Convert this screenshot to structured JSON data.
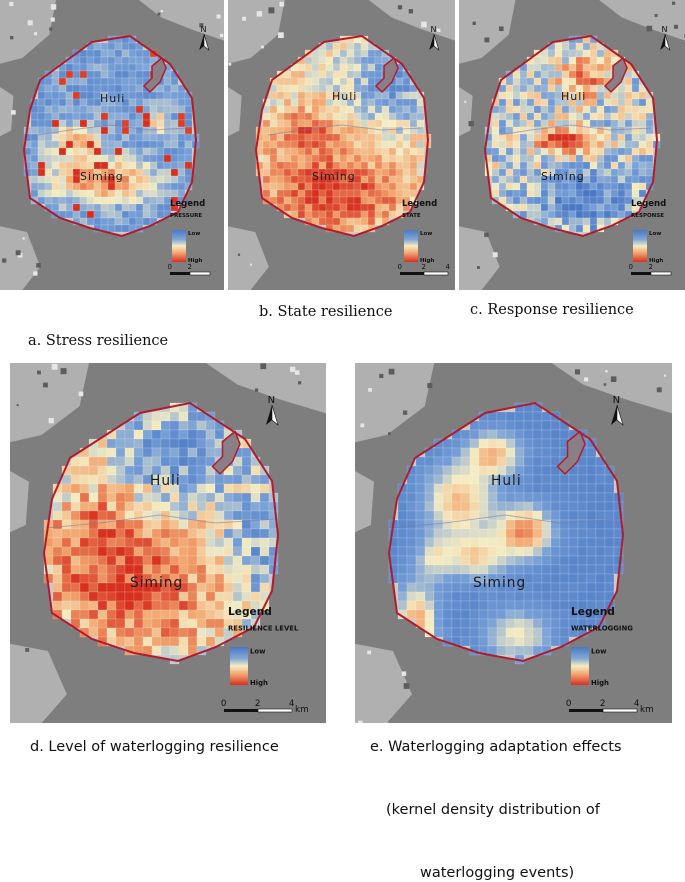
{
  "panels": [
    {
      "id": "a",
      "legend_title": "Legend",
      "variable": "PRESSURE",
      "legend_low": "Low",
      "legend_high": "High",
      "place_north": "Huli",
      "place_south": "Siming",
      "north_label": "N",
      "scale_ticks": [
        "0",
        "2",
        ""
      ],
      "scale_unit": "",
      "pattern": "stress"
    },
    {
      "id": "b",
      "legend_title": "Legend",
      "variable": "STATE",
      "legend_low": "Low",
      "legend_high": "High",
      "place_north": "Huli",
      "place_south": "Siming",
      "north_label": "N",
      "scale_ticks": [
        "0",
        "2",
        "4"
      ],
      "scale_unit": "",
      "pattern": "state"
    },
    {
      "id": "c",
      "legend_title": "Legend",
      "variable": "RESPONSE",
      "legend_low": "Low",
      "legend_high": "High",
      "place_north": "Huli",
      "place_south": "Siming",
      "north_label": "N",
      "scale_ticks": [
        "0",
        "2",
        ""
      ],
      "scale_unit": "",
      "pattern": "response"
    },
    {
      "id": "d",
      "legend_title": "Legend",
      "variable": "RESILIENCE LEVEL",
      "legend_low": "Low",
      "legend_high": "High",
      "place_north": "Huli",
      "place_south": "Siming",
      "north_label": "N",
      "scale_ticks": [
        "0",
        "2",
        "4"
      ],
      "scale_unit": "km",
      "pattern": "level"
    },
    {
      "id": "e",
      "legend_title": "Legend",
      "variable": "WATERLOGGING",
      "legend_low": "Low",
      "legend_high": "High",
      "place_north": "Huli",
      "place_south": "Siming",
      "north_label": "N",
      "scale_ticks": [
        "0",
        "2",
        "4"
      ],
      "scale_unit": "km",
      "pattern": "kernel"
    }
  ],
  "captions": {
    "a": "a. Stress resilience",
    "b": "b. State resilience",
    "c": "c. Response resilience",
    "d": "d. Level of waterlogging resilience",
    "e_line1": "e. Waterlogging adaptation effects",
    "e_line2": "(kernel density distribution of",
    "e_line3": "waterlogging events)"
  },
  "colors": {
    "low": "#4a78c4",
    "mid": "#f4ecc2",
    "high": "#d7301f",
    "boundary": "#b01c2e",
    "sea": "#7e7e7e",
    "land": "#b9b9b9"
  }
}
